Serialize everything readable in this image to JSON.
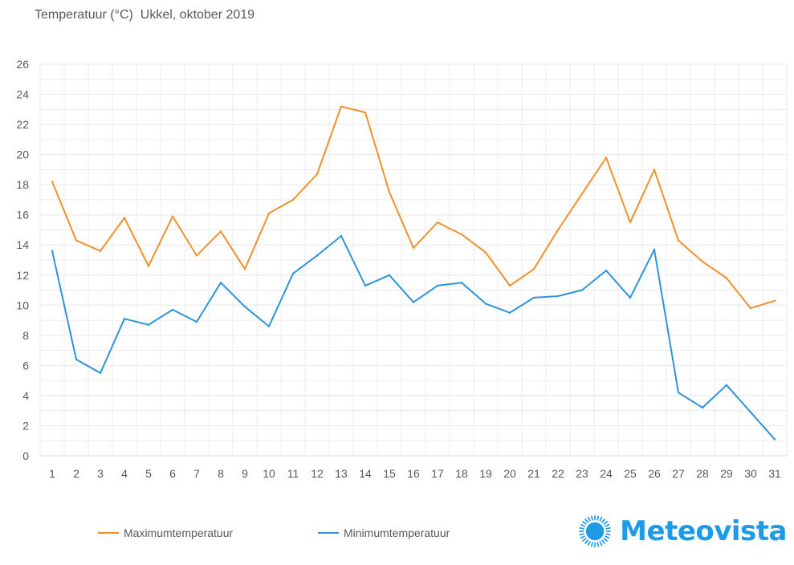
{
  "title": "Temperatuur (°C)  Ukkel, oktober 2019",
  "colors": {
    "max": "#F0912D",
    "min": "#2E93D8",
    "grid": "#E8E8E8",
    "axis": "#D9D9D9",
    "text": "#595959",
    "brand": "#1E9BE6"
  },
  "chart_data": {
    "type": "line",
    "title": "Temperatuur (°C)  Ukkel, oktober 2019",
    "xlabel": "",
    "ylabel": "",
    "x": [
      1,
      2,
      3,
      4,
      5,
      6,
      7,
      8,
      9,
      10,
      11,
      12,
      13,
      14,
      15,
      16,
      17,
      18,
      19,
      20,
      21,
      22,
      23,
      24,
      25,
      26,
      27,
      28,
      29,
      30,
      31
    ],
    "ylim": [
      0,
      26
    ],
    "yticks": [
      0,
      2,
      4,
      6,
      8,
      10,
      12,
      14,
      16,
      18,
      20,
      22,
      24,
      26
    ],
    "series": [
      {
        "name": "Maximumtemperatuur",
        "color": "#F0912D",
        "values": [
          18.2,
          14.3,
          13.6,
          15.8,
          12.6,
          15.9,
          13.3,
          14.9,
          12.4,
          16.1,
          17.0,
          18.7,
          23.2,
          22.8,
          17.5,
          13.8,
          15.5,
          14.7,
          13.5,
          11.3,
          12.4,
          15.0,
          17.4,
          19.8,
          15.5,
          19.0,
          14.3,
          12.9,
          11.8,
          9.8,
          10.3
        ]
      },
      {
        "name": "Minimumtemperatuur",
        "color": "#2E93D8",
        "values": [
          13.6,
          6.4,
          5.5,
          9.1,
          8.7,
          9.7,
          8.9,
          11.5,
          9.9,
          8.6,
          12.1,
          13.3,
          14.6,
          11.3,
          12.0,
          10.2,
          11.3,
          11.5,
          10.1,
          9.5,
          10.5,
          10.6,
          11.0,
          12.3,
          10.5,
          13.7,
          4.2,
          3.2,
          4.7,
          2.9,
          1.1
        ]
      }
    ],
    "legend": "bottom-left",
    "grid": true
  },
  "legend": {
    "max_label": "Maximumtemperatuur",
    "min_label": "Minimumtemperatuur"
  },
  "logo": {
    "text": "Meteovista"
  }
}
